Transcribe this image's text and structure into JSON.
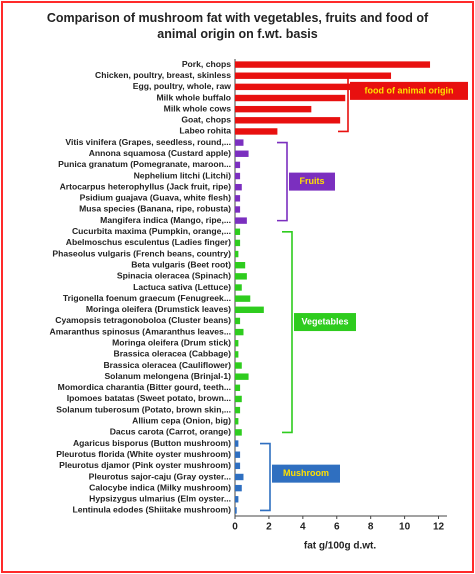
{
  "chart_data": {
    "type": "bar",
    "title": "Comparison of mushroom fat with vegetables, fruits and food of animal origin on f.wt. basis",
    "x_label": "fat g/100g d.wt.",
    "xlim": [
      0,
      12.5
    ],
    "xticks": [
      0,
      2,
      4,
      6,
      8,
      10,
      12
    ],
    "groups": [
      {
        "label": "food of animal origin",
        "color": "#e8100f",
        "label_color": "#ffe000",
        "categories": [
          "Pork, chops",
          "Chicken, poultry, breast, skinless",
          "Egg, poultry, whole, raw",
          "Milk whole buffalo",
          "Milk whole cows",
          "Goat, chops",
          "Labeo rohita"
        ],
        "values": [
          11.5,
          9.2,
          9.3,
          6.5,
          4.5,
          6.2,
          2.5
        ]
      },
      {
        "label": "Fruits",
        "color": "#7b2fbf",
        "label_color": "#ffe000",
        "categories": [
          "Vitis vinifera (Grapes, seedless, round,...",
          "Annona squamosa (Custard apple)",
          "Punica granatum (Pomegranate, maroon...",
          "Nephelium litchi (Litchi)",
          "Artocarpus heterophyllus (Jack fruit, ripe)",
          "Psidium guajava (Guava, white flesh)",
          "Musa species (Banana, ripe, robusta)",
          "Mangifera indica (Mango, ripe,..."
        ],
        "values": [
          0.5,
          0.8,
          0.3,
          0.3,
          0.4,
          0.3,
          0.3,
          0.7
        ]
      },
      {
        "label": "Vegetables",
        "color": "#2ecc1e",
        "label_color": "#ffffff",
        "categories": [
          "Cucurbita maxima (Pumpkin, orange,...",
          "Abelmoschus esculentus (Ladies finger)",
          "Phaseolus vulgaris (French beans, country)",
          "Beta vulgaris (Beet root)",
          "Spinacia oleracea (Spinach)",
          "Lactuca sativa (Lettuce)",
          "Trigonella foenum graecum (Fenugreek...",
          "Moringa oleifera (Drumstick leaves)",
          "Cyamopsis tetragonoboloa (Cluster beans)",
          "Amaranthus spinosus (Amaranthus leaves...",
          "Moringa oleifera (Drum stick)",
          "Brassica oleracea (Cabbage)",
          "Brassica oleracea (Cauliflower)",
          "Solanum melongena (Brinjal-1)",
          "Momordica charantia (Bitter gourd, teeth...",
          "Ipomoes batatas (Sweet potato, brown...",
          "Solanum tuberosum (Potato, brown skin,...",
          "Allium cepa (Onion, big)",
          "Dacus carota (Carrot, orange)"
        ],
        "values": [
          0.3,
          0.3,
          0.2,
          0.6,
          0.7,
          0.4,
          0.9,
          1.7,
          0.3,
          0.5,
          0.2,
          0.2,
          0.4,
          0.8,
          0.3,
          0.4,
          0.3,
          0.2,
          0.4
        ]
      },
      {
        "label": "Mushroom",
        "color": "#2f6fc0",
        "label_color": "#ffe000",
        "categories": [
          "Agaricus bisporus (Button mushroom)",
          "Pleurotus florida (White oyster mushroom)",
          "Pleurotus djamor (Pink oyster mushroom)",
          "Pleurotus sajor-caju (Gray oyster...",
          "Calocybe indica (Milky mushroom)",
          "Hypsizygus ulmarius (Elm oyster...",
          "Lentinula edodes (Shiitake mushroom)"
        ],
        "values": [
          0.2,
          0.3,
          0.3,
          0.5,
          0.4,
          0.2,
          0.1
        ]
      }
    ]
  }
}
